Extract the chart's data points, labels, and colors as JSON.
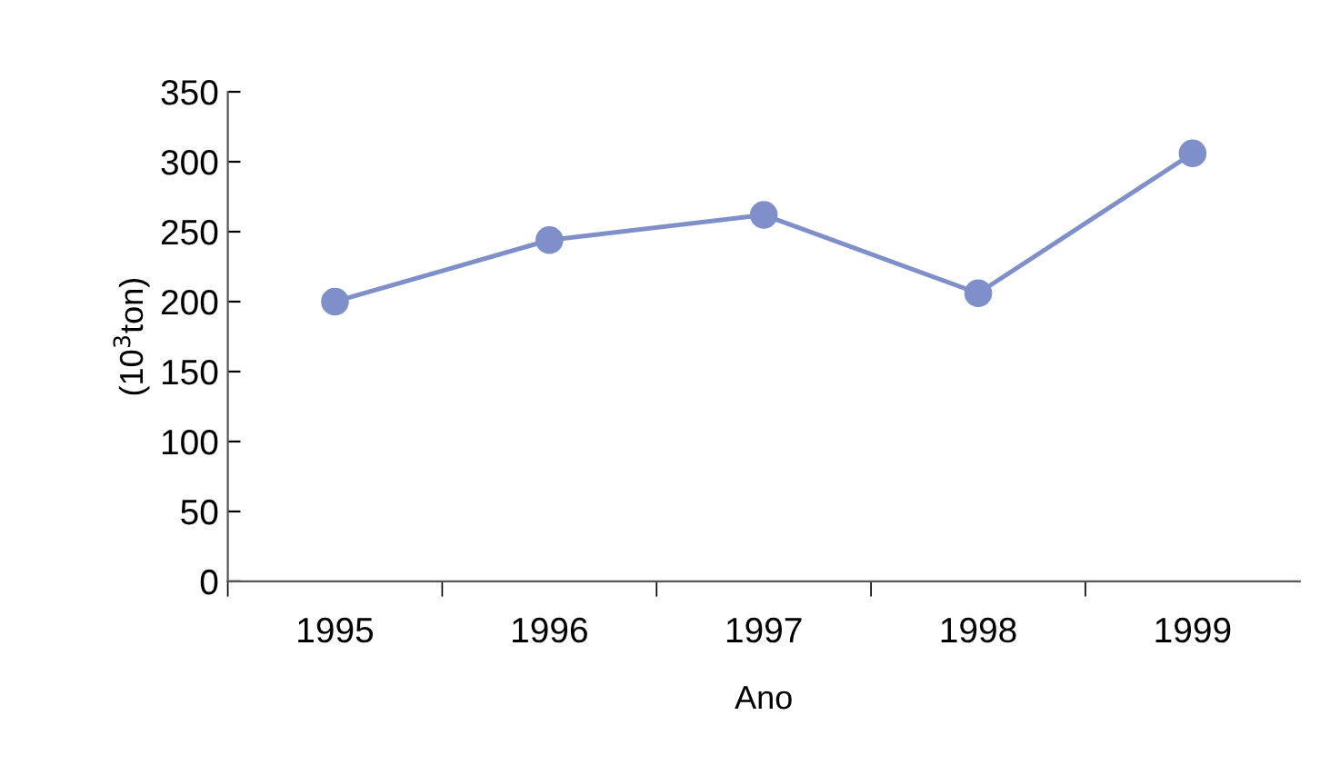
{
  "chart_data": {
    "type": "line",
    "xlabel": "Ano",
    "ylabel": "(10$^{3}$ton)",
    "categories": [
      "1995",
      "1996",
      "1997",
      "1998",
      "1999"
    ],
    "series": [
      {
        "color": "#7f8fc9",
        "values": [
          200,
          244,
          262,
          206,
          306
        ]
      }
    ],
    "ylim": [
      0,
      350
    ],
    "yticks": [
      0,
      50,
      100,
      150,
      200,
      250,
      300,
      350
    ],
    "marker": "circle",
    "line_style": "solid",
    "grid": false
  }
}
